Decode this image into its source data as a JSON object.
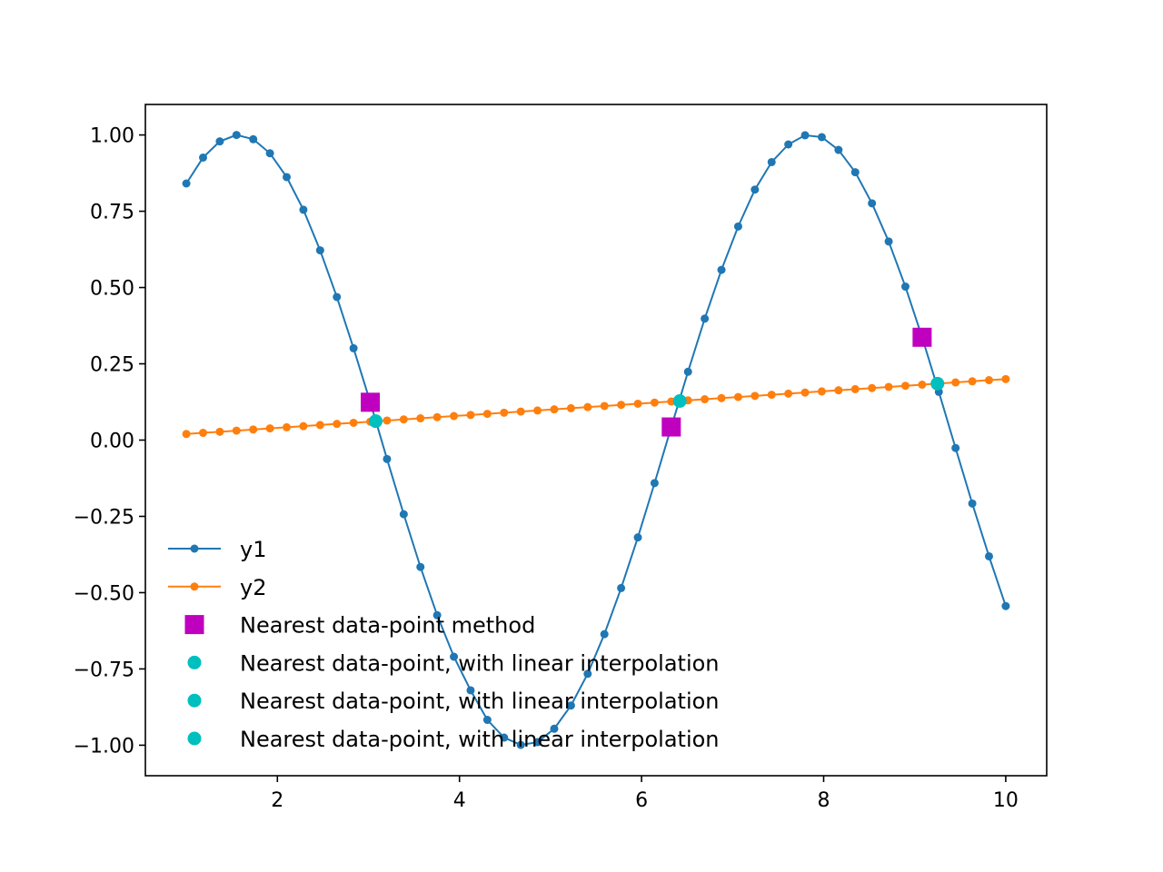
{
  "chart_data": {
    "type": "line",
    "title": "",
    "xlabel": "",
    "ylabel": "",
    "xlim": [
      0.55,
      10.45
    ],
    "ylim": [
      -1.1,
      1.1
    ],
    "x_ticks": [
      {
        "value": 2,
        "label": "2"
      },
      {
        "value": 4,
        "label": "4"
      },
      {
        "value": 6,
        "label": "6"
      },
      {
        "value": 8,
        "label": "8"
      },
      {
        "value": 10,
        "label": "10"
      }
    ],
    "y_ticks": [
      {
        "value": 1.0,
        "label": "1.00"
      },
      {
        "value": 0.75,
        "label": "0.75"
      },
      {
        "value": 0.5,
        "label": "0.50"
      },
      {
        "value": 0.25,
        "label": "0.25"
      },
      {
        "value": 0.0,
        "label": "0.00"
      },
      {
        "value": -0.25,
        "label": "−0.25"
      },
      {
        "value": -0.5,
        "label": "−0.50"
      },
      {
        "value": -0.75,
        "label": "−0.75"
      },
      {
        "value": -1.0,
        "label": "−1.00"
      }
    ],
    "grid": false,
    "legend_position": "lower-left",
    "x": [
      1.0,
      1.1837,
      1.3673,
      1.551,
      1.7347,
      1.9184,
      2.102,
      2.2857,
      2.4694,
      2.6531,
      2.8367,
      3.0204,
      3.2041,
      3.3878,
      3.5714,
      3.7551,
      3.9388,
      4.1224,
      4.3061,
      4.4898,
      4.6735,
      4.8571,
      5.0408,
      5.2245,
      5.4082,
      5.5918,
      5.7755,
      5.9592,
      6.1429,
      6.3265,
      6.5102,
      6.6939,
      6.8776,
      7.0612,
      7.2449,
      7.4286,
      7.6122,
      7.7959,
      7.9796,
      8.1633,
      8.3469,
      8.5306,
      8.7143,
      8.898,
      9.0816,
      9.2653,
      9.449,
      9.6327,
      9.8163,
      10.0
    ],
    "series": [
      {
        "name": "y1",
        "color": "#1f77b4",
        "marker": "dot",
        "values": [
          0.841,
          0.926,
          0.979,
          1.0,
          0.986,
          0.94,
          0.862,
          0.755,
          0.622,
          0.469,
          0.301,
          0.124,
          -0.062,
          -0.243,
          -0.416,
          -0.574,
          -0.71,
          -0.82,
          -0.917,
          -0.975,
          -0.999,
          -0.99,
          -0.946,
          -0.87,
          -0.766,
          -0.636,
          -0.485,
          -0.319,
          -0.141,
          0.043,
          0.224,
          0.398,
          0.558,
          0.7,
          0.821,
          0.911,
          0.969,
          0.999,
          0.993,
          0.951,
          0.878,
          0.776,
          0.651,
          0.503,
          0.337,
          0.158,
          -0.026,
          -0.208,
          -0.381,
          -0.544
        ]
      },
      {
        "name": "y2",
        "color": "#ff7f0e",
        "marker": "dot",
        "values": [
          0.02,
          0.0237,
          0.0273,
          0.031,
          0.0347,
          0.0384,
          0.042,
          0.0457,
          0.0494,
          0.0531,
          0.0567,
          0.0604,
          0.0641,
          0.0678,
          0.0714,
          0.0751,
          0.0788,
          0.0824,
          0.0861,
          0.0898,
          0.0935,
          0.0971,
          0.1008,
          0.1045,
          0.1082,
          0.1118,
          0.1155,
          0.1192,
          0.1229,
          0.1265,
          0.1302,
          0.1339,
          0.1376,
          0.1412,
          0.1449,
          0.1486,
          0.1522,
          0.1559,
          0.1596,
          0.1633,
          0.1669,
          0.1706,
          0.1743,
          0.178,
          0.1816,
          0.1853,
          0.189,
          0.1927,
          0.1963,
          0.2
        ]
      }
    ],
    "markers": [
      {
        "name": "Nearest data-point method",
        "color": "#bf00bf",
        "shape": "square",
        "points": [
          [
            3.0204,
            0.124
          ],
          [
            6.3265,
            0.043
          ],
          [
            9.0816,
            0.337
          ]
        ]
      },
      {
        "name": "Nearest data-point, with linear interpolation",
        "color": "#00bfbf",
        "shape": "circle",
        "points": [
          [
            3.08,
            0.062
          ]
        ]
      },
      {
        "name": "Nearest data-point, with linear interpolation",
        "color": "#00bfbf",
        "shape": "circle",
        "points": [
          [
            6.42,
            0.128
          ]
        ]
      },
      {
        "name": "Nearest data-point, with linear interpolation",
        "color": "#00bfbf",
        "shape": "circle",
        "points": [
          [
            9.25,
            0.185
          ]
        ]
      }
    ]
  }
}
